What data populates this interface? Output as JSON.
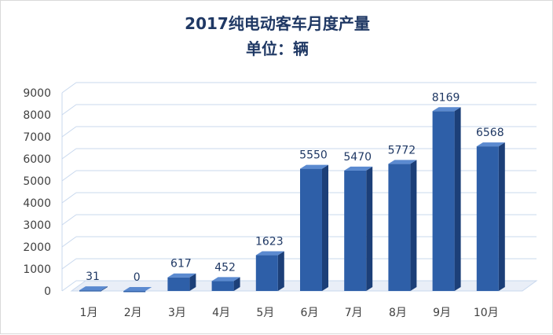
{
  "chart_data": {
    "type": "bar",
    "title": "2017纯电动客车月度产量",
    "subtitle": "单位：辆",
    "categories": [
      "1月",
      "2月",
      "3月",
      "4月",
      "5月",
      "6月",
      "7月",
      "8月",
      "9月",
      "10月"
    ],
    "values": [
      31,
      0,
      617,
      452,
      1623,
      5550,
      5470,
      5772,
      8169,
      6568
    ],
    "ylim": [
      0,
      9000
    ],
    "yticks": [
      "0",
      "1000",
      "2000",
      "3000",
      "4000",
      "5000",
      "6000",
      "7000",
      "8000",
      "9000"
    ],
    "grid": true,
    "legend": "none",
    "colors": {
      "bar_front": "#2e5fa8",
      "bar_side": "#1c3f78",
      "bar_top": "#5b8ad0",
      "gridline": "#c8d8ee",
      "title": "#1f3864"
    }
  }
}
